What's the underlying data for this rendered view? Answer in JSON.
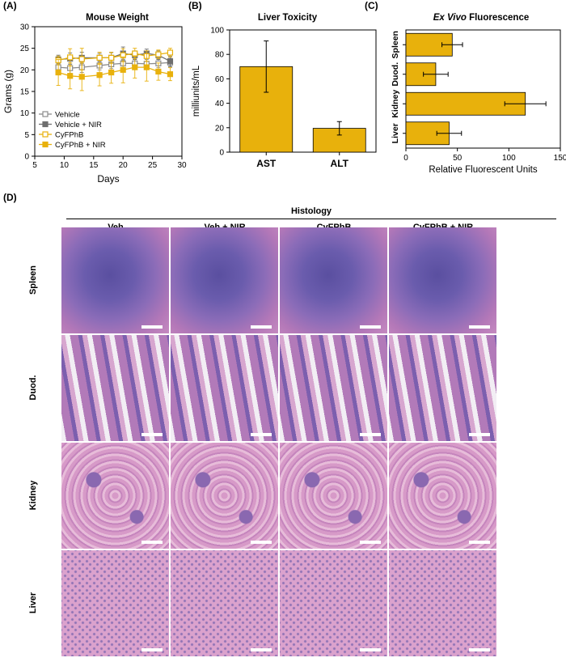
{
  "panels": {
    "A": "(A)",
    "B": "(B)",
    "C": "(C)",
    "D": "(D)"
  },
  "chart_data": [
    {
      "type": "line",
      "title": "Mouse Weight",
      "xlabel": "Days",
      "ylabel": "Grams (g)",
      "xlim": [
        5,
        30
      ],
      "ylim": [
        0,
        30
      ],
      "xticks": [
        "5",
        "10",
        "15",
        "20",
        "25",
        "30"
      ],
      "yticks": [
        "0",
        "5",
        "10",
        "15",
        "20",
        "25",
        "30"
      ],
      "x": [
        9,
        11,
        13,
        16,
        18,
        20,
        22,
        24,
        26,
        28
      ],
      "legend_position": "bottom-left",
      "series": [
        {
          "name": "Vehicle",
          "color": "#8c8c8c",
          "marker": "open-square",
          "values": [
            20.6,
            20.4,
            20.6,
            21.0,
            21.3,
            21.5,
            21.5,
            21.4,
            21.5,
            21.7
          ],
          "errors": [
            1.0,
            1.2,
            1.2,
            1.0,
            1.0,
            1.0,
            1.0,
            1.0,
            1.0,
            1.0
          ]
        },
        {
          "name": "Vehicle + NIR",
          "color": "#6e6e6e",
          "marker": "filled-square",
          "values": [
            22.4,
            22.6,
            22.8,
            22.8,
            22.8,
            23.8,
            23.4,
            23.8,
            23.4,
            22.0
          ],
          "errors": [
            1.0,
            1.3,
            1.3,
            1.0,
            1.2,
            1.5,
            1.0,
            1.0,
            1.0,
            1.2
          ]
        },
        {
          "name": "CyFPhB",
          "color": "#e8b10c",
          "marker": "open-square",
          "values": [
            22.2,
            22.9,
            22.5,
            22.8,
            22.8,
            23.4,
            23.8,
            23.2,
            23.6,
            24.0
          ],
          "errors": [
            1.0,
            2.0,
            2.5,
            1.3,
            1.3,
            1.5,
            1.2,
            1.2,
            1.0,
            1.0
          ]
        },
        {
          "name": "CyFPhB + NIR",
          "color": "#e8b10c",
          "marker": "filled-square",
          "values": [
            19.4,
            18.6,
            18.4,
            18.8,
            19.4,
            20.0,
            20.6,
            20.6,
            19.6,
            19.0
          ],
          "errors": [
            3.0,
            3.0,
            3.2,
            2.5,
            2.5,
            3.0,
            2.5,
            3.2,
            2.0,
            1.5
          ]
        }
      ]
    },
    {
      "type": "bar",
      "title": "Liver Toxicity",
      "xlabel": "",
      "ylabel": "milliunits/mL",
      "ylim": [
        0,
        100
      ],
      "yticks": [
        "0",
        "20",
        "40",
        "60",
        "80",
        "100"
      ],
      "categories": [
        "AST",
        "ALT"
      ],
      "values": [
        70,
        19.5
      ],
      "errors": [
        21,
        5.5
      ],
      "color": "#e8b10c"
    },
    {
      "type": "bar",
      "orientation": "horizontal",
      "title_italic": "Ex Vivo",
      "title_rest": " Fluorescence",
      "xlabel": "Relative Fluorescent Units",
      "ylabel": "",
      "xlim": [
        0,
        150
      ],
      "xticks": [
        "0",
        "50",
        "100",
        "150"
      ],
      "categories": [
        "Spleen",
        "Duod.",
        "Kidney",
        "Liver"
      ],
      "values": [
        45,
        29,
        116,
        42
      ],
      "errors": [
        10,
        12,
        20,
        12
      ],
      "color": "#e8b10c"
    }
  ],
  "histology": {
    "title": "Histology",
    "columns": [
      "Veh",
      "Veh + NIR",
      "CyFPhB",
      "CyFPhB + NIR"
    ],
    "rows": [
      "Spleen",
      "Duod.",
      "Kidney",
      "Liver"
    ]
  }
}
